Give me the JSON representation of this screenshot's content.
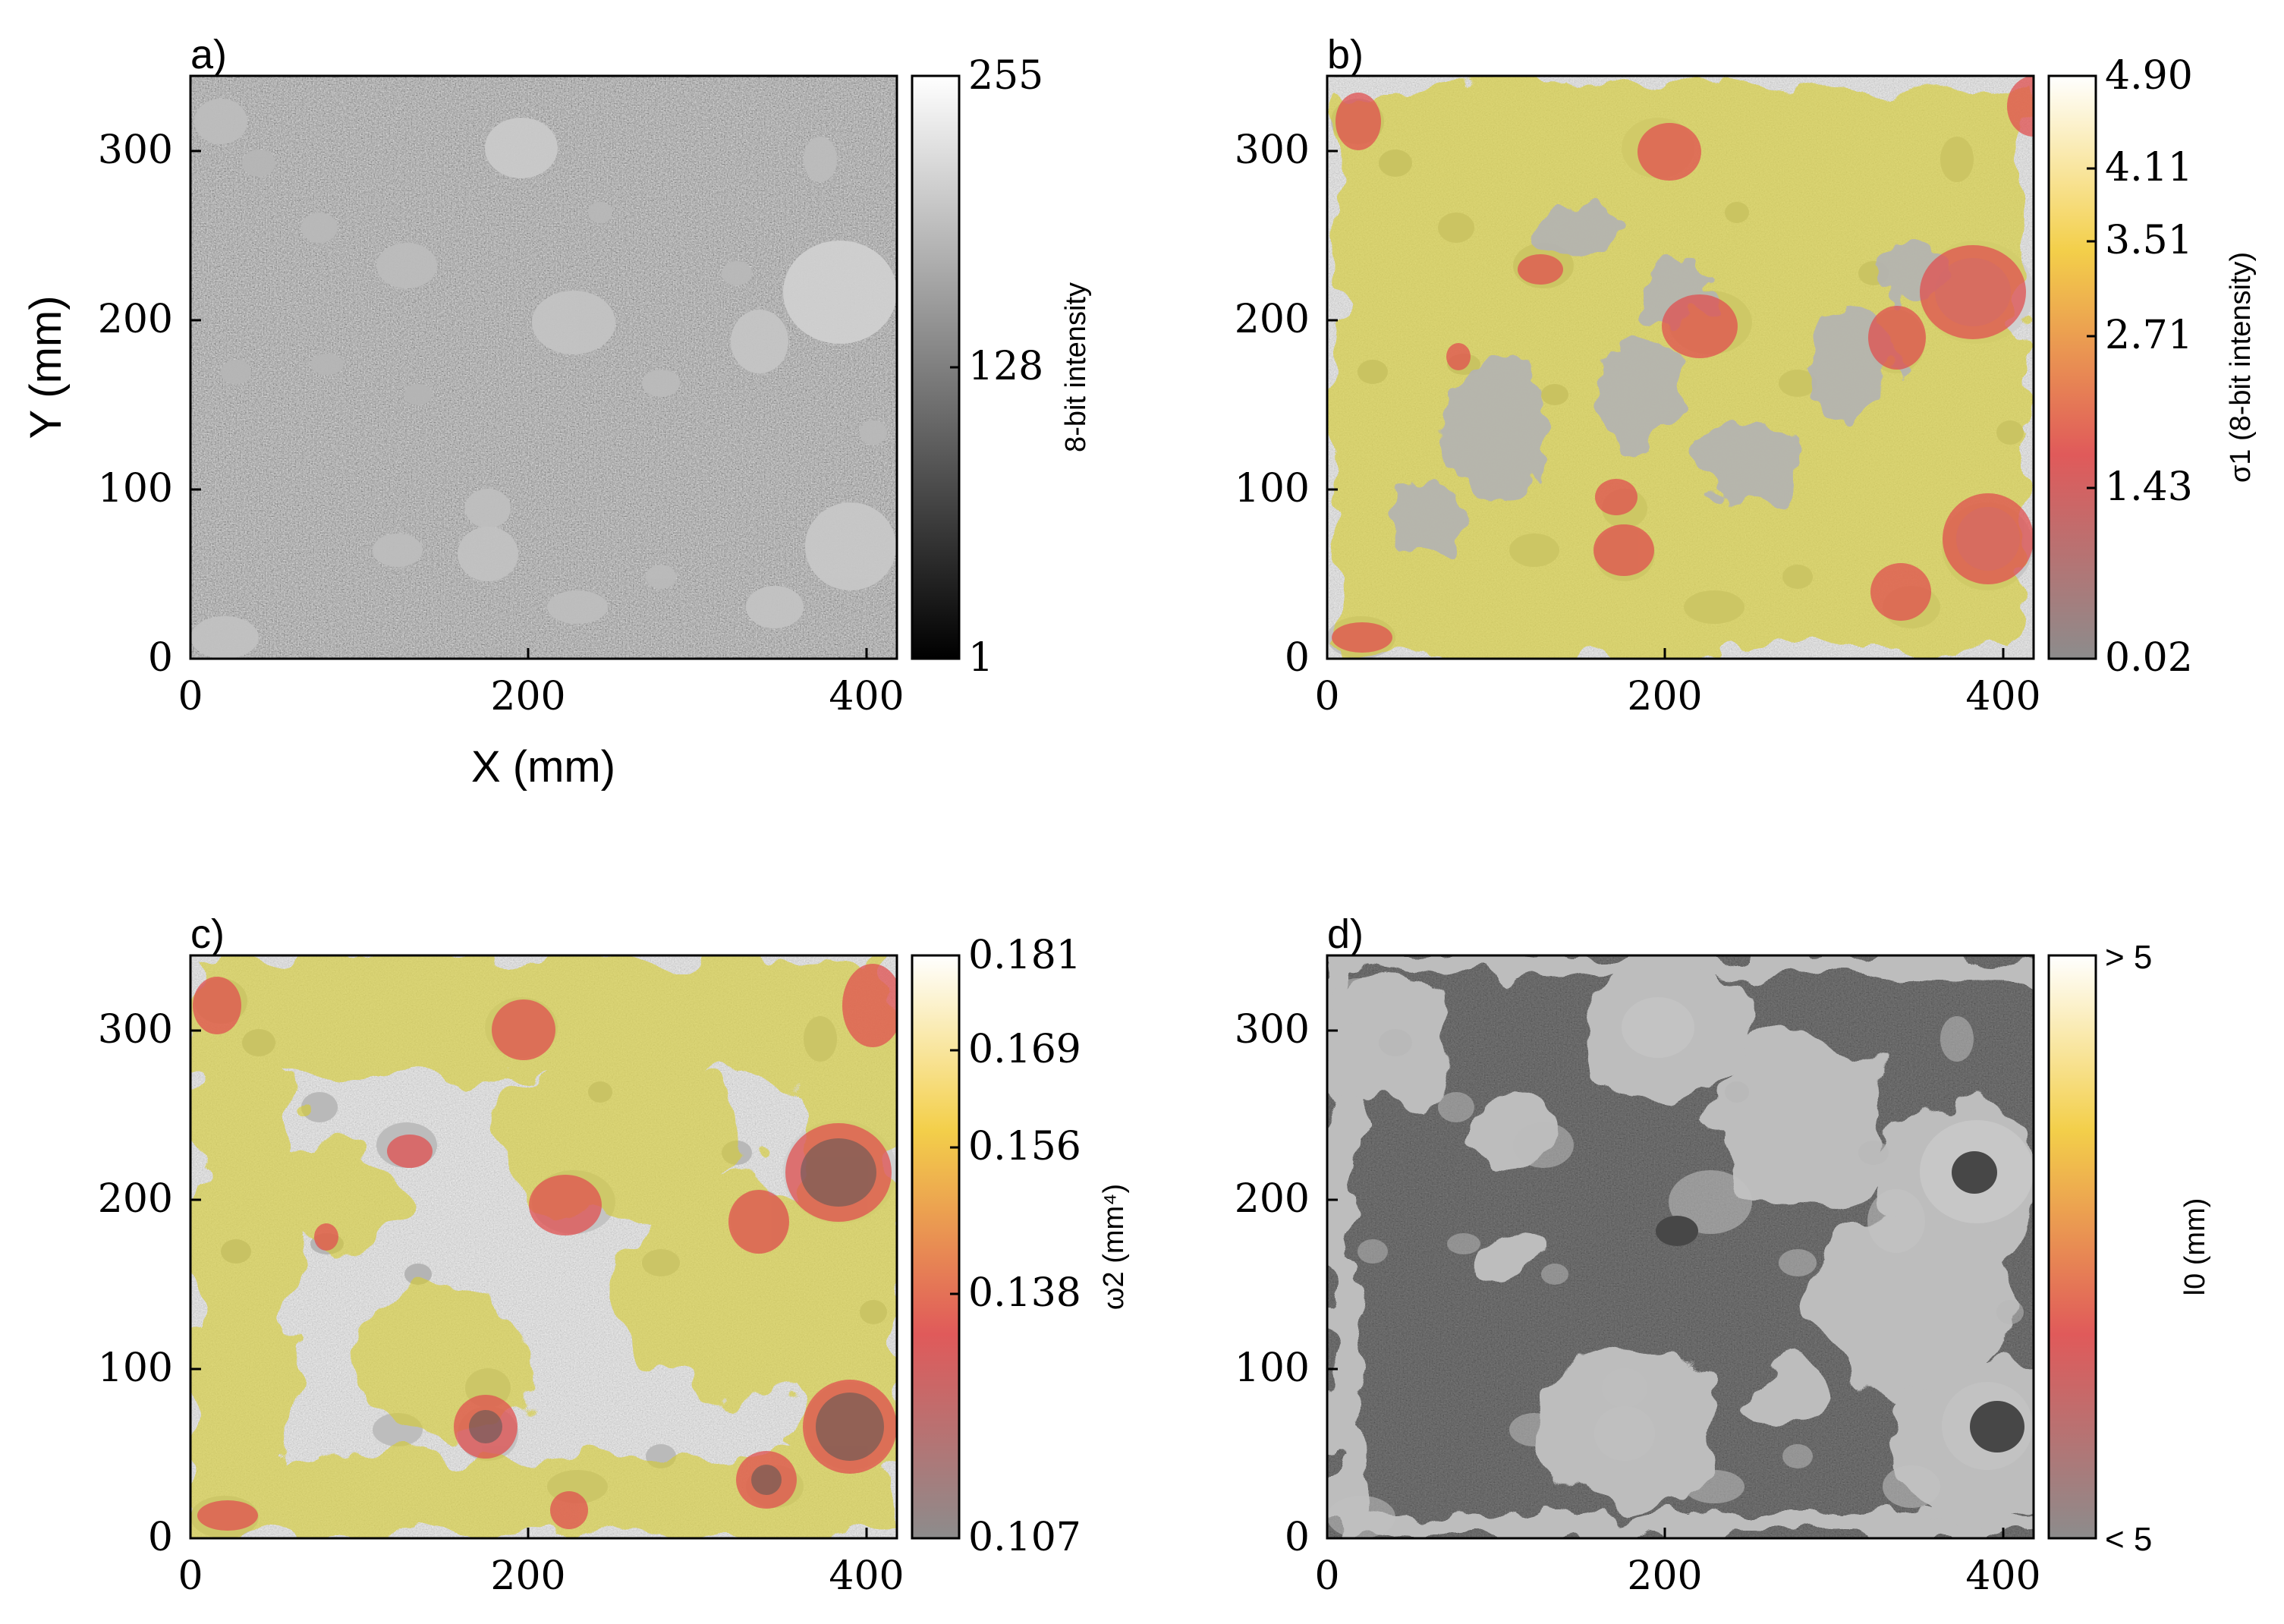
{
  "panels": [
    {
      "id": "a",
      "label": "a)",
      "xticks": [
        "0",
        "200",
        "400"
      ],
      "yticks": [
        "0",
        "100",
        "200",
        "300"
      ],
      "xlabel": "X (mm)",
      "ylabel": "Y (mm)",
      "colorbar": {
        "label": "8-bit intensity",
        "ticks": [
          "255",
          "128",
          "1"
        ],
        "colormap": "gray"
      },
      "overlay": "none"
    },
    {
      "id": "b",
      "label": "b)",
      "xticks": [
        "0",
        "200",
        "400"
      ],
      "yticks": [
        "0",
        "100",
        "200",
        "300"
      ],
      "xlabel": "",
      "ylabel": "",
      "colorbar": {
        "label": "σ1 (8-bit intensity)",
        "ticks": [
          "4.90",
          "4.11",
          "3.51",
          "2.71",
          "1.43",
          "0.02"
        ],
        "colormap": "gray-red-yellow-white"
      },
      "overlay": "heat"
    },
    {
      "id": "c",
      "label": "c)",
      "xticks": [
        "0",
        "200",
        "400"
      ],
      "yticks": [
        "0",
        "100",
        "200",
        "300"
      ],
      "xlabel": "",
      "ylabel": "",
      "colorbar": {
        "label": "ω2 (mm⁴)",
        "ticks": [
          "0.181",
          "0.169",
          "0.156",
          "0.138",
          "0.107"
        ],
        "colormap": "gray-red-yellow-white"
      },
      "overlay": "heat"
    },
    {
      "id": "d",
      "label": "d)",
      "xticks": [
        "0",
        "200",
        "400"
      ],
      "yticks": [
        "0",
        "100",
        "200",
        "300"
      ],
      "xlabel": "",
      "ylabel": "",
      "colorbar": {
        "label": "l0 (mm)",
        "ticks": [
          "> 5",
          "< 5"
        ],
        "colormap": "gray-red-yellow-white"
      },
      "overlay": "mask"
    }
  ],
  "colors": {
    "sediment_dark": "#5a5a5a",
    "sediment_mid": "#8a8a8a",
    "pebble": "#b8b8b8",
    "heat_red": "#e05050",
    "heat_yellow": "#d8d040",
    "mask_dark": "#3c3c3c",
    "mask_light": "#bdbdbd"
  }
}
